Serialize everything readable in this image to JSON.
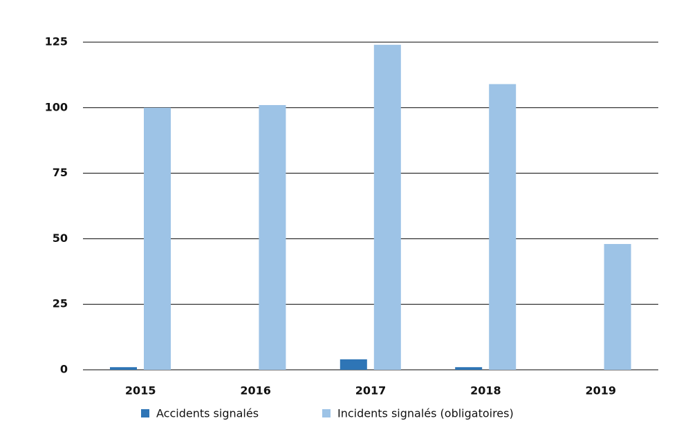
{
  "chart_data": {
    "type": "bar",
    "categories": [
      "2015",
      "2016",
      "2017",
      "2018",
      "2019"
    ],
    "series": [
      {
        "name": "Accidents signalés",
        "color": "#2e75b6",
        "values": [
          1,
          0,
          4,
          1,
          0
        ]
      },
      {
        "name": "Incidents signalés (obligatoires)",
        "color": "#9dc3e6",
        "values": [
          100,
          101,
          124,
          109,
          48
        ]
      }
    ],
    "ylim": [
      0,
      125
    ],
    "yticks": [
      0,
      25,
      50,
      75,
      100,
      125
    ],
    "grid": true,
    "legend": "bottom"
  }
}
